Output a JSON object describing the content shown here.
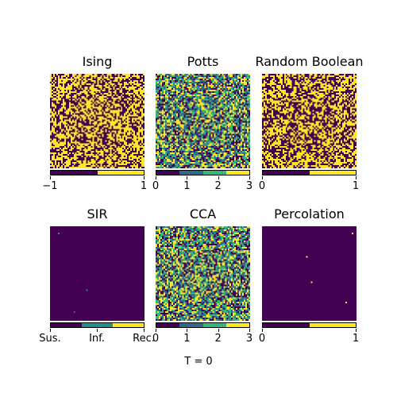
{
  "colors": {
    "viridis_dark": "#440154",
    "viridis_blue": "#3b528b",
    "viridis_teal": "#21918c",
    "viridis_green": "#5ec962",
    "viridis_yellow": "#fde725"
  },
  "chart_data": [
    {
      "type": "heatmap",
      "title": "Ising",
      "grid_size": [
        60,
        60
      ],
      "states": [
        -1,
        1
      ],
      "state_colors": [
        "#440154",
        "#fde725"
      ],
      "state_fractions": [
        0.45,
        0.55
      ],
      "colorbar_ticks": [
        "−1",
        "1"
      ]
    },
    {
      "type": "heatmap",
      "title": "Potts",
      "grid_size": [
        60,
        60
      ],
      "states": [
        0,
        1,
        2,
        3
      ],
      "state_colors": [
        "#440154",
        "#31688e",
        "#35b779",
        "#fde725"
      ],
      "state_fractions": [
        0.25,
        0.25,
        0.25,
        0.25
      ],
      "colorbar_ticks": [
        "0",
        "1",
        "2",
        "3"
      ]
    },
    {
      "type": "heatmap",
      "title": "Random Boolean",
      "grid_size": [
        60,
        60
      ],
      "states": [
        0,
        1
      ],
      "state_colors": [
        "#440154",
        "#fde725"
      ],
      "state_fractions": [
        0.5,
        0.5
      ],
      "colorbar_ticks": [
        "0",
        "1"
      ]
    },
    {
      "type": "heatmap",
      "title": "SIR",
      "grid_size": [
        60,
        60
      ],
      "states": [
        "Sus.",
        "Inf.",
        "Rec."
      ],
      "state_colors": [
        "#440154",
        "#21918c",
        "#fde725"
      ],
      "state_fractions": [
        0.999,
        0.001,
        0.0
      ],
      "colorbar_ticks": [
        "Sus.",
        "Inf.",
        "Rec."
      ]
    },
    {
      "type": "heatmap",
      "title": "CCA",
      "grid_size": [
        60,
        60
      ],
      "states": [
        0,
        1,
        2,
        3
      ],
      "state_colors": [
        "#440154",
        "#31688e",
        "#35b779",
        "#fde725"
      ],
      "state_fractions": [
        0.25,
        0.25,
        0.25,
        0.25
      ],
      "colorbar_ticks": [
        "0",
        "1",
        "2",
        "3"
      ]
    },
    {
      "type": "heatmap",
      "title": "Percolation",
      "grid_size": [
        60,
        60
      ],
      "states": [
        0,
        1
      ],
      "state_colors": [
        "#440154",
        "#fde725"
      ],
      "state_fractions": [
        0.999,
        0.001
      ],
      "colorbar_ticks": [
        "0",
        "1"
      ]
    }
  ],
  "footer": {
    "time_label": "T = 0"
  }
}
